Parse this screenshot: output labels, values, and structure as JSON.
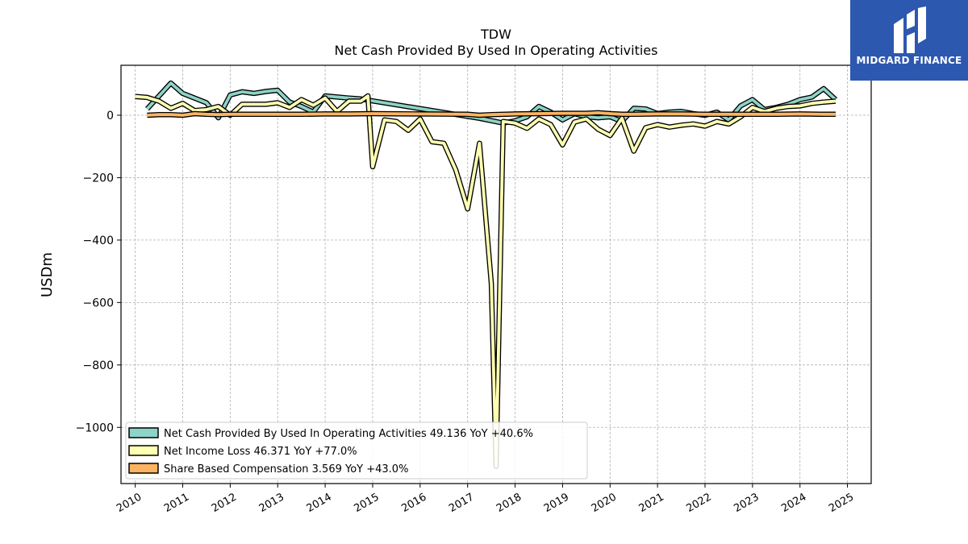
{
  "chart_data": {
    "type": "line",
    "title": "TDW",
    "subtitle": "Net Cash Provided By Used In Operating Activities",
    "ylabel": "USDm",
    "xlabel": "",
    "xlim": [
      2009.7,
      2025.5
    ],
    "ylim": [
      -1180,
      160
    ],
    "yticks": [
      0,
      -200,
      -400,
      -600,
      -800,
      -1000
    ],
    "ytick_labels": [
      "0",
      "−200",
      "−400",
      "−600",
      "−800",
      "−1000"
    ],
    "xticks": [
      2010,
      2011,
      2012,
      2013,
      2014,
      2015,
      2016,
      2017,
      2018,
      2019,
      2020,
      2021,
      2022,
      2023,
      2024,
      2025
    ],
    "xtick_labels": [
      "2010",
      "2011",
      "2012",
      "2013",
      "2014",
      "2015",
      "2016",
      "2017",
      "2018",
      "2019",
      "2020",
      "2021",
      "2022",
      "2023",
      "2024",
      "2025"
    ],
    "grid": true,
    "legend_position": "lower-left",
    "series": [
      {
        "name": "Net Cash Provided By Used In Operating Activities  49.136 YoY +40.6%",
        "color": "#8dd3c7",
        "points": [
          [
            2010.25,
            20
          ],
          [
            2010.75,
            103
          ],
          [
            2011.0,
            70
          ],
          [
            2011.5,
            40
          ],
          [
            2011.75,
            -8
          ],
          [
            2012.0,
            65
          ],
          [
            2012.25,
            75
          ],
          [
            2012.5,
            70
          ],
          [
            2012.75,
            76
          ],
          [
            2013.0,
            80
          ],
          [
            2013.25,
            42
          ],
          [
            2013.5,
            28
          ],
          [
            2013.75,
            10
          ],
          [
            2014.0,
            62
          ],
          [
            2014.5,
            55
          ],
          [
            2014.75,
            52
          ],
          [
            2017.25,
            -10
          ],
          [
            2017.75,
            -25
          ],
          [
            2018.0,
            -18
          ],
          [
            2018.25,
            -5
          ],
          [
            2018.5,
            28
          ],
          [
            2018.75,
            10
          ],
          [
            2019.0,
            -15
          ],
          [
            2019.25,
            5
          ],
          [
            2019.5,
            -5
          ],
          [
            2019.75,
            -8
          ],
          [
            2020.0,
            -5
          ],
          [
            2020.25,
            -20
          ],
          [
            2020.5,
            22
          ],
          [
            2020.75,
            20
          ],
          [
            2021.0,
            5
          ],
          [
            2021.25,
            10
          ],
          [
            2021.5,
            12
          ],
          [
            2021.75,
            5
          ],
          [
            2022.0,
            0
          ],
          [
            2022.25,
            10
          ],
          [
            2022.5,
            -15
          ],
          [
            2022.75,
            30
          ],
          [
            2023.0,
            50
          ],
          [
            2023.25,
            18
          ],
          [
            2023.5,
            25
          ],
          [
            2023.75,
            35
          ],
          [
            2024.0,
            50
          ],
          [
            2024.25,
            58
          ],
          [
            2024.5,
            85
          ],
          [
            2024.75,
            50
          ]
        ]
      },
      {
        "name": "Net Income Loss  46.371 YoY +77.0%",
        "color": "#ffffb3",
        "points": [
          [
            2010.0,
            60
          ],
          [
            2010.25,
            57
          ],
          [
            2010.5,
            45
          ],
          [
            2010.75,
            22
          ],
          [
            2011.0,
            38
          ],
          [
            2011.25,
            15
          ],
          [
            2011.5,
            18
          ],
          [
            2011.75,
            28
          ],
          [
            2012.0,
            0
          ],
          [
            2012.25,
            35
          ],
          [
            2012.5,
            35
          ],
          [
            2012.75,
            35
          ],
          [
            2013.0,
            40
          ],
          [
            2013.25,
            25
          ],
          [
            2013.5,
            50
          ],
          [
            2013.75,
            32
          ],
          [
            2014.0,
            55
          ],
          [
            2014.25,
            12
          ],
          [
            2014.5,
            45
          ],
          [
            2014.75,
            45
          ],
          [
            2014.9,
            62
          ],
          [
            2015.0,
            -165
          ],
          [
            2015.25,
            -15
          ],
          [
            2015.5,
            -20
          ],
          [
            2015.75,
            -48
          ],
          [
            2016.0,
            -12
          ],
          [
            2016.25,
            -85
          ],
          [
            2016.5,
            -90
          ],
          [
            2016.75,
            -175
          ],
          [
            2017.0,
            -300
          ],
          [
            2017.25,
            -90
          ],
          [
            2017.5,
            -540
          ],
          [
            2017.6,
            -1125
          ],
          [
            2017.75,
            -20
          ],
          [
            2018.0,
            -25
          ],
          [
            2018.25,
            -42
          ],
          [
            2018.5,
            -12
          ],
          [
            2018.75,
            -30
          ],
          [
            2019.0,
            -95
          ],
          [
            2019.25,
            -22
          ],
          [
            2019.5,
            -12
          ],
          [
            2019.75,
            -45
          ],
          [
            2020.0,
            -65
          ],
          [
            2020.25,
            -10
          ],
          [
            2020.5,
            -115
          ],
          [
            2020.75,
            -40
          ],
          [
            2021.0,
            -30
          ],
          [
            2021.25,
            -38
          ],
          [
            2021.5,
            -32
          ],
          [
            2021.75,
            -28
          ],
          [
            2022.0,
            -35
          ],
          [
            2022.25,
            -20
          ],
          [
            2022.5,
            -28
          ],
          [
            2022.75,
            -5
          ],
          [
            2023.0,
            25
          ],
          [
            2023.25,
            12
          ],
          [
            2023.5,
            22
          ],
          [
            2023.75,
            28
          ],
          [
            2024.0,
            30
          ],
          [
            2024.25,
            38
          ],
          [
            2024.5,
            42
          ],
          [
            2024.75,
            45
          ]
        ]
      },
      {
        "name": "Share Based Compensation  3.569 YoY +43.0%",
        "color": "#fdb462",
        "points": [
          [
            2010.25,
            0
          ],
          [
            2010.5,
            2
          ],
          [
            2010.75,
            2
          ],
          [
            2011.0,
            0
          ],
          [
            2011.25,
            5
          ],
          [
            2011.5,
            3
          ],
          [
            2011.75,
            2
          ],
          [
            2012.0,
            3
          ],
          [
            2012.5,
            3
          ],
          [
            2013.0,
            3
          ],
          [
            2013.5,
            3
          ],
          [
            2014.0,
            4
          ],
          [
            2014.5,
            4
          ],
          [
            2015.0,
            5
          ],
          [
            2016.0,
            4
          ],
          [
            2017.0,
            3
          ],
          [
            2017.25,
            0
          ],
          [
            2017.5,
            2
          ],
          [
            2018.0,
            4
          ],
          [
            2018.5,
            5
          ],
          [
            2019.0,
            6
          ],
          [
            2019.5,
            6
          ],
          [
            2019.75,
            8
          ],
          [
            2020.0,
            5
          ],
          [
            2020.25,
            3
          ],
          [
            2020.5,
            3
          ],
          [
            2021.0,
            4
          ],
          [
            2021.5,
            4
          ],
          [
            2022.0,
            3
          ],
          [
            2022.5,
            3
          ],
          [
            2023.0,
            3
          ],
          [
            2023.5,
            3
          ],
          [
            2024.0,
            4
          ],
          [
            2024.5,
            3
          ],
          [
            2024.75,
            3
          ]
        ]
      }
    ]
  },
  "logo": {
    "text": "MIDGARD FINANCE",
    "background": "#2c58b0"
  }
}
